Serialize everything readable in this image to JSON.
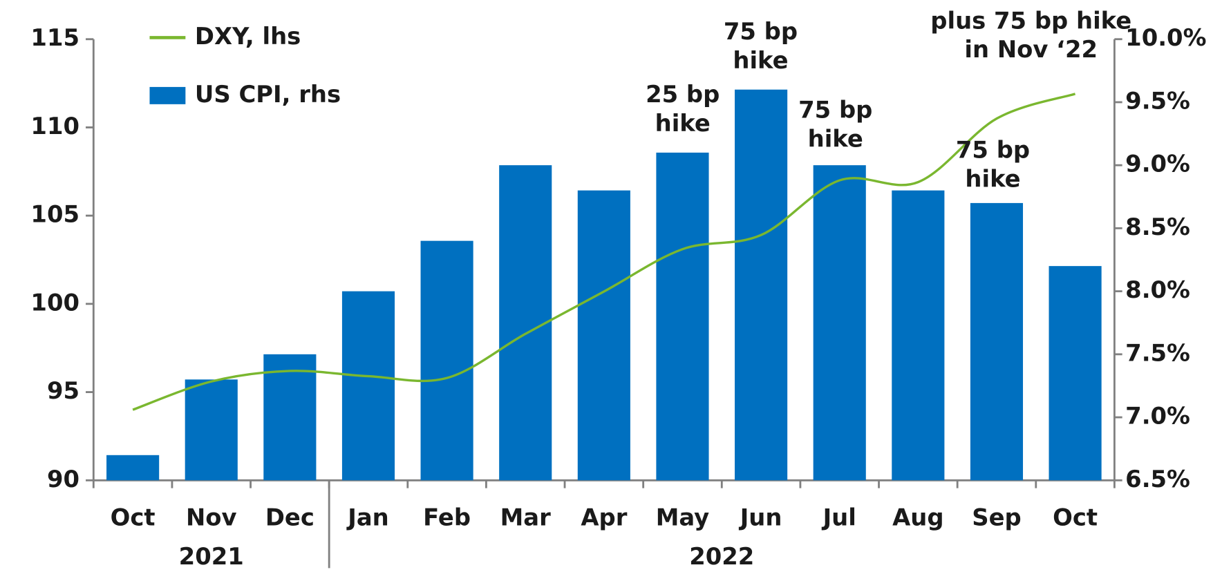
{
  "chart_data": {
    "type": "bar_line",
    "categories": [
      "Oct",
      "Nov",
      "Dec",
      "Jan",
      "Feb",
      "Mar",
      "Apr",
      "May",
      "Jun",
      "Jul",
      "Aug",
      "Sep",
      "Oct"
    ],
    "years": [
      "2021",
      "2022"
    ],
    "series": [
      {
        "name": "DXY, lhs",
        "type": "line",
        "color": "#7ab72f",
        "axis": "y",
        "values": [
          94.0,
          95.6,
          96.2,
          95.9,
          95.8,
          98.3,
          100.7,
          103.1,
          103.9,
          107.0,
          106.9,
          110.5,
          111.9
        ]
      },
      {
        "name": "US CPI, rhs",
        "type": "bar",
        "color": "#0070c0",
        "axis": "y2",
        "values": [
          6.7,
          7.3,
          7.5,
          8.0,
          8.4,
          9.0,
          8.8,
          9.1,
          9.6,
          9.0,
          8.8,
          8.7,
          8.2
        ]
      }
    ],
    "ylim": [
      90,
      115
    ],
    "yticks": [
      90,
      95,
      100,
      105,
      110,
      115
    ],
    "y2lim": [
      6.5,
      10.0
    ],
    "y2ticks": [
      {
        "value": 6.5,
        "label": "6.5%"
      },
      {
        "value": 7.0,
        "label": "7.0%"
      },
      {
        "value": 7.5,
        "label": "7.5%"
      },
      {
        "value": 8.0,
        "label": "8.0%"
      },
      {
        "value": 8.5,
        "label": "8.5%"
      },
      {
        "value": 9.0,
        "label": "9.0%"
      },
      {
        "value": 9.5,
        "label": "9.5%"
      },
      {
        "value": 10.0,
        "label": "10.0%"
      }
    ],
    "annotations": [
      [
        "25 bp",
        "hike"
      ],
      [
        "75 bp",
        "hike"
      ],
      [
        "75 bp",
        "hike"
      ],
      [
        "75 bp",
        "hike"
      ],
      [
        "plus 75 bp hike",
        "in Nov ‘22"
      ]
    ],
    "legend": "upper left"
  }
}
